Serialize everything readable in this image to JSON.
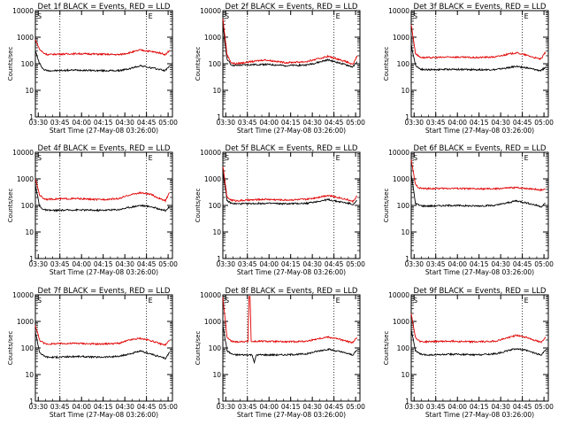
{
  "chart_data": [
    {
      "type": "line",
      "title": "Det 1f BLACK = Events, RED = LLD",
      "xlabel": "Start Time (27-May-08 03:26:00)",
      "ylabel": "Counts/sec",
      "ylim": [
        1,
        10000
      ],
      "yscale": "log",
      "x_ticks": [
        "03:30",
        "03:45",
        "04:00",
        "04:15",
        "04:30",
        "04:45",
        "05:00"
      ],
      "y_ticks": [
        "1",
        "10",
        "100",
        "1000",
        "10000"
      ],
      "markers": {
        "left": "S",
        "right": "E"
      },
      "series": [
        {
          "name": "Events",
          "color": "#000000",
          "t": [
            0,
            2,
            4,
            6,
            10,
            20,
            30,
            40,
            45,
            50,
            55,
            60,
            62,
            64
          ],
          "values": [
            300,
            100,
            60,
            55,
            55,
            58,
            55,
            55,
            65,
            85,
            70,
            60,
            55,
            85
          ]
        },
        {
          "name": "LLD",
          "color": "#e00000",
          "t": [
            0,
            2,
            4,
            6,
            10,
            20,
            30,
            40,
            45,
            50,
            55,
            60,
            62,
            64
          ],
          "values": [
            800,
            350,
            250,
            220,
            230,
            240,
            230,
            220,
            260,
            330,
            290,
            250,
            220,
            320
          ]
        }
      ]
    },
    {
      "type": "line",
      "title": "Det 2f BLACK = Events, RED = LLD",
      "xlabel": "Start Time (27-May-08 03:26:00)",
      "ylabel": "Counts/sec",
      "ylim": [
        1,
        10000
      ],
      "yscale": "log",
      "x_ticks": [
        "03:30",
        "03:45",
        "04:00",
        "04:15",
        "04:30",
        "04:45",
        "05:00"
      ],
      "y_ticks": [
        "1",
        "10",
        "100",
        "1000",
        "10000"
      ],
      "markers": {
        "left": "S",
        "right": "E"
      },
      "series": [
        {
          "name": "Events",
          "color": "#000000",
          "t": [
            0,
            2,
            4,
            6,
            10,
            20,
            30,
            40,
            45,
            50,
            55,
            60,
            62,
            64
          ],
          "values": [
            3000,
            150,
            90,
            85,
            90,
            95,
            85,
            90,
            110,
            140,
            110,
            85,
            75,
            120
          ]
        },
        {
          "name": "LLD",
          "color": "#e00000",
          "t": [
            0,
            2,
            4,
            6,
            10,
            20,
            30,
            40,
            45,
            50,
            55,
            60,
            62,
            64
          ],
          "values": [
            5000,
            220,
            110,
            100,
            110,
            140,
            110,
            120,
            150,
            190,
            150,
            110,
            90,
            200
          ]
        }
      ]
    },
    {
      "type": "line",
      "title": "Det 3f BLACK = Events, RED = LLD",
      "xlabel": "Start Time (27-May-08 03:26:00)",
      "ylabel": "Counts/sec",
      "ylim": [
        1,
        10000
      ],
      "yscale": "log",
      "x_ticks": [
        "03:30",
        "03:45",
        "04:00",
        "04:15",
        "04:30",
        "04:45",
        "05:00"
      ],
      "y_ticks": [
        "1",
        "10",
        "100",
        "1000",
        "10000"
      ],
      "markers": {
        "left": "S",
        "right": "E"
      },
      "series": [
        {
          "name": "Events",
          "color": "#000000",
          "t": [
            0,
            2,
            4,
            6,
            10,
            20,
            30,
            40,
            45,
            50,
            55,
            60,
            62,
            64
          ],
          "values": [
            500,
            90,
            65,
            60,
            60,
            62,
            60,
            60,
            68,
            80,
            70,
            58,
            55,
            75
          ]
        },
        {
          "name": "LLD",
          "color": "#e00000",
          "t": [
            0,
            2,
            4,
            6,
            10,
            20,
            30,
            40,
            45,
            50,
            55,
            60,
            62,
            64
          ],
          "values": [
            3000,
            250,
            180,
            170,
            170,
            180,
            170,
            180,
            220,
            260,
            210,
            160,
            150,
            280
          ]
        }
      ]
    },
    {
      "type": "line",
      "title": "Det 4f BLACK = Events, RED = LLD",
      "xlabel": "Start Time (27-May-08 03:26:00)",
      "ylabel": "Counts/sec",
      "ylim": [
        1,
        10000
      ],
      "yscale": "log",
      "x_ticks": [
        "03:30",
        "03:45",
        "04:00",
        "04:15",
        "04:30",
        "04:45",
        "05:00"
      ],
      "y_ticks": [
        "1",
        "10",
        "100",
        "1000",
        "10000"
      ],
      "markers": {
        "left": "S",
        "right": "E"
      },
      "series": [
        {
          "name": "Events",
          "color": "#000000",
          "t": [
            0,
            2,
            4,
            6,
            10,
            20,
            30,
            40,
            45,
            50,
            55,
            60,
            62,
            64
          ],
          "values": [
            600,
            90,
            70,
            65,
            65,
            68,
            65,
            70,
            85,
            100,
            90,
            70,
            65,
            90
          ]
        },
        {
          "name": "LLD",
          "color": "#e00000",
          "t": [
            0,
            2,
            4,
            6,
            10,
            20,
            30,
            40,
            45,
            50,
            55,
            60,
            62,
            64
          ],
          "values": [
            1000,
            250,
            180,
            170,
            175,
            180,
            165,
            180,
            250,
            300,
            260,
            170,
            150,
            300
          ]
        }
      ]
    },
    {
      "type": "line",
      "title": "Det 5f BLACK = Events, RED = LLD",
      "xlabel": "Start Time (27-May-08 03:26:00)",
      "ylabel": "Counts/sec",
      "ylim": [
        1,
        10000
      ],
      "yscale": "log",
      "x_ticks": [
        "03:30",
        "03:45",
        "04:00",
        "04:15",
        "04:30",
        "04:45",
        "05:00"
      ],
      "y_ticks": [
        "1",
        "10",
        "100",
        "1000",
        "10000"
      ],
      "markers": {
        "left": "S",
        "right": "E"
      },
      "series": [
        {
          "name": "Events",
          "color": "#000000",
          "t": [
            0,
            2,
            4,
            6,
            10,
            20,
            30,
            40,
            45,
            50,
            55,
            60,
            62,
            64
          ],
          "values": [
            2000,
            150,
            120,
            115,
            115,
            120,
            115,
            120,
            140,
            165,
            140,
            120,
            110,
            150
          ]
        },
        {
          "name": "LLD",
          "color": "#e00000",
          "t": [
            0,
            2,
            4,
            6,
            10,
            20,
            30,
            40,
            45,
            50,
            55,
            60,
            62,
            64
          ],
          "values": [
            3000,
            200,
            160,
            150,
            155,
            170,
            160,
            170,
            200,
            240,
            200,
            160,
            140,
            230
          ]
        }
      ]
    },
    {
      "type": "line",
      "title": "Det 6f BLACK = Events, RED = LLD",
      "xlabel": "Start Time (27-May-08 03:26:00)",
      "ylabel": "Counts/sec",
      "ylim": [
        1,
        10000
      ],
      "yscale": "log",
      "x_ticks": [
        "03:30",
        "03:45",
        "04:00",
        "04:15",
        "04:30",
        "04:45",
        "05:00"
      ],
      "y_ticks": [
        "1",
        "10",
        "100",
        "1000",
        "10000"
      ],
      "markers": {
        "left": "S",
        "right": "E"
      },
      "series": [
        {
          "name": "Events",
          "color": "#000000",
          "t": [
            0,
            2,
            4,
            6,
            10,
            20,
            30,
            40,
            45,
            50,
            55,
            60,
            62,
            64
          ],
          "values": [
            1500,
            120,
            100,
            95,
            95,
            100,
            95,
            100,
            120,
            150,
            125,
            100,
            90,
            120
          ]
        },
        {
          "name": "LLD",
          "color": "#e00000",
          "t": [
            0,
            2,
            4,
            6,
            10,
            20,
            30,
            40,
            45,
            50,
            55,
            60,
            62,
            64
          ],
          "values": [
            5000,
            600,
            450,
            430,
            430,
            440,
            420,
            420,
            450,
            470,
            440,
            400,
            380,
            420
          ]
        }
      ]
    },
    {
      "type": "line",
      "title": "Det 7f BLACK = Events, RED = LLD",
      "xlabel": "Start Time (27-May-08 03:26:00)",
      "ylabel": "Counts/sec",
      "ylim": [
        1,
        10000
      ],
      "yscale": "log",
      "x_ticks": [
        "03:30",
        "03:45",
        "04:00",
        "04:15",
        "04:30",
        "04:45",
        "05:00"
      ],
      "y_ticks": [
        "1",
        "10",
        "100",
        "1000",
        "10000"
      ],
      "markers": {
        "left": "S",
        "right": "E"
      },
      "series": [
        {
          "name": "Events",
          "color": "#000000",
          "t": [
            0,
            2,
            4,
            6,
            10,
            20,
            30,
            40,
            45,
            50,
            55,
            60,
            62,
            64
          ],
          "values": [
            400,
            70,
            50,
            45,
            45,
            48,
            45,
            48,
            60,
            75,
            60,
            45,
            40,
            70
          ]
        },
        {
          "name": "LLD",
          "color": "#e00000",
          "t": [
            0,
            2,
            4,
            6,
            10,
            20,
            30,
            40,
            45,
            50,
            55,
            60,
            62,
            64
          ],
          "values": [
            700,
            200,
            150,
            140,
            145,
            150,
            140,
            150,
            200,
            230,
            190,
            140,
            130,
            200
          ]
        }
      ]
    },
    {
      "type": "line",
      "title": "Det 8f BLACK = Events, RED = LLD",
      "xlabel": "Start Time (27-May-08 03:26:00)",
      "ylabel": "Counts/sec",
      "ylim": [
        1,
        10000
      ],
      "yscale": "log",
      "x_ticks": [
        "03:30",
        "03:45",
        "04:00",
        "04:15",
        "04:30",
        "04:45",
        "05:00"
      ],
      "y_ticks": [
        "1",
        "10",
        "100",
        "1000",
        "10000"
      ],
      "markers": {
        "left": "S",
        "right": "E"
      },
      "series": [
        {
          "name": "Events",
          "color": "#000000",
          "t": [
            0,
            2,
            4,
            6,
            10,
            14,
            15,
            16,
            20,
            30,
            40,
            45,
            50,
            55,
            60,
            62,
            64
          ],
          "values": [
            700,
            80,
            60,
            55,
            55,
            55,
            28,
            55,
            55,
            55,
            60,
            75,
            90,
            75,
            60,
            55,
            85
          ]
        },
        {
          "name": "LLD",
          "color": "#e00000",
          "t": [
            0,
            2,
            4,
            6,
            10,
            12,
            12.5,
            13,
            13.5,
            14,
            20,
            30,
            40,
            45,
            50,
            55,
            60,
            62,
            64
          ],
          "values": [
            8000,
            250,
            180,
            170,
            175,
            175,
            9000,
            9000,
            175,
            175,
            180,
            170,
            180,
            220,
            260,
            220,
            170,
            160,
            250
          ]
        }
      ]
    },
    {
      "type": "line",
      "title": "Det 9f BLACK = Events, RED = LLD",
      "xlabel": "Start Time (27-May-08 03:26:00)",
      "ylabel": "Counts/sec",
      "ylim": [
        1,
        10000
      ],
      "yscale": "log",
      "x_ticks": [
        "03:30",
        "03:45",
        "04:00",
        "04:15",
        "04:30",
        "04:45",
        "05:00"
      ],
      "y_ticks": [
        "1",
        "10",
        "100",
        "1000",
        "10000"
      ],
      "markers": {
        "left": "S",
        "right": "E"
      },
      "series": [
        {
          "name": "Events",
          "color": "#000000",
          "t": [
            0,
            2,
            4,
            6,
            10,
            20,
            30,
            40,
            45,
            50,
            55,
            60,
            62,
            64
          ],
          "values": [
            500,
            80,
            60,
            55,
            55,
            58,
            55,
            60,
            75,
            95,
            80,
            60,
            55,
            85
          ]
        },
        {
          "name": "LLD",
          "color": "#e00000",
          "t": [
            0,
            2,
            4,
            6,
            10,
            20,
            30,
            40,
            45,
            50,
            55,
            60,
            62,
            64
          ],
          "values": [
            2000,
            250,
            180,
            170,
            175,
            180,
            170,
            180,
            230,
            300,
            250,
            180,
            160,
            260
          ]
        }
      ]
    }
  ]
}
